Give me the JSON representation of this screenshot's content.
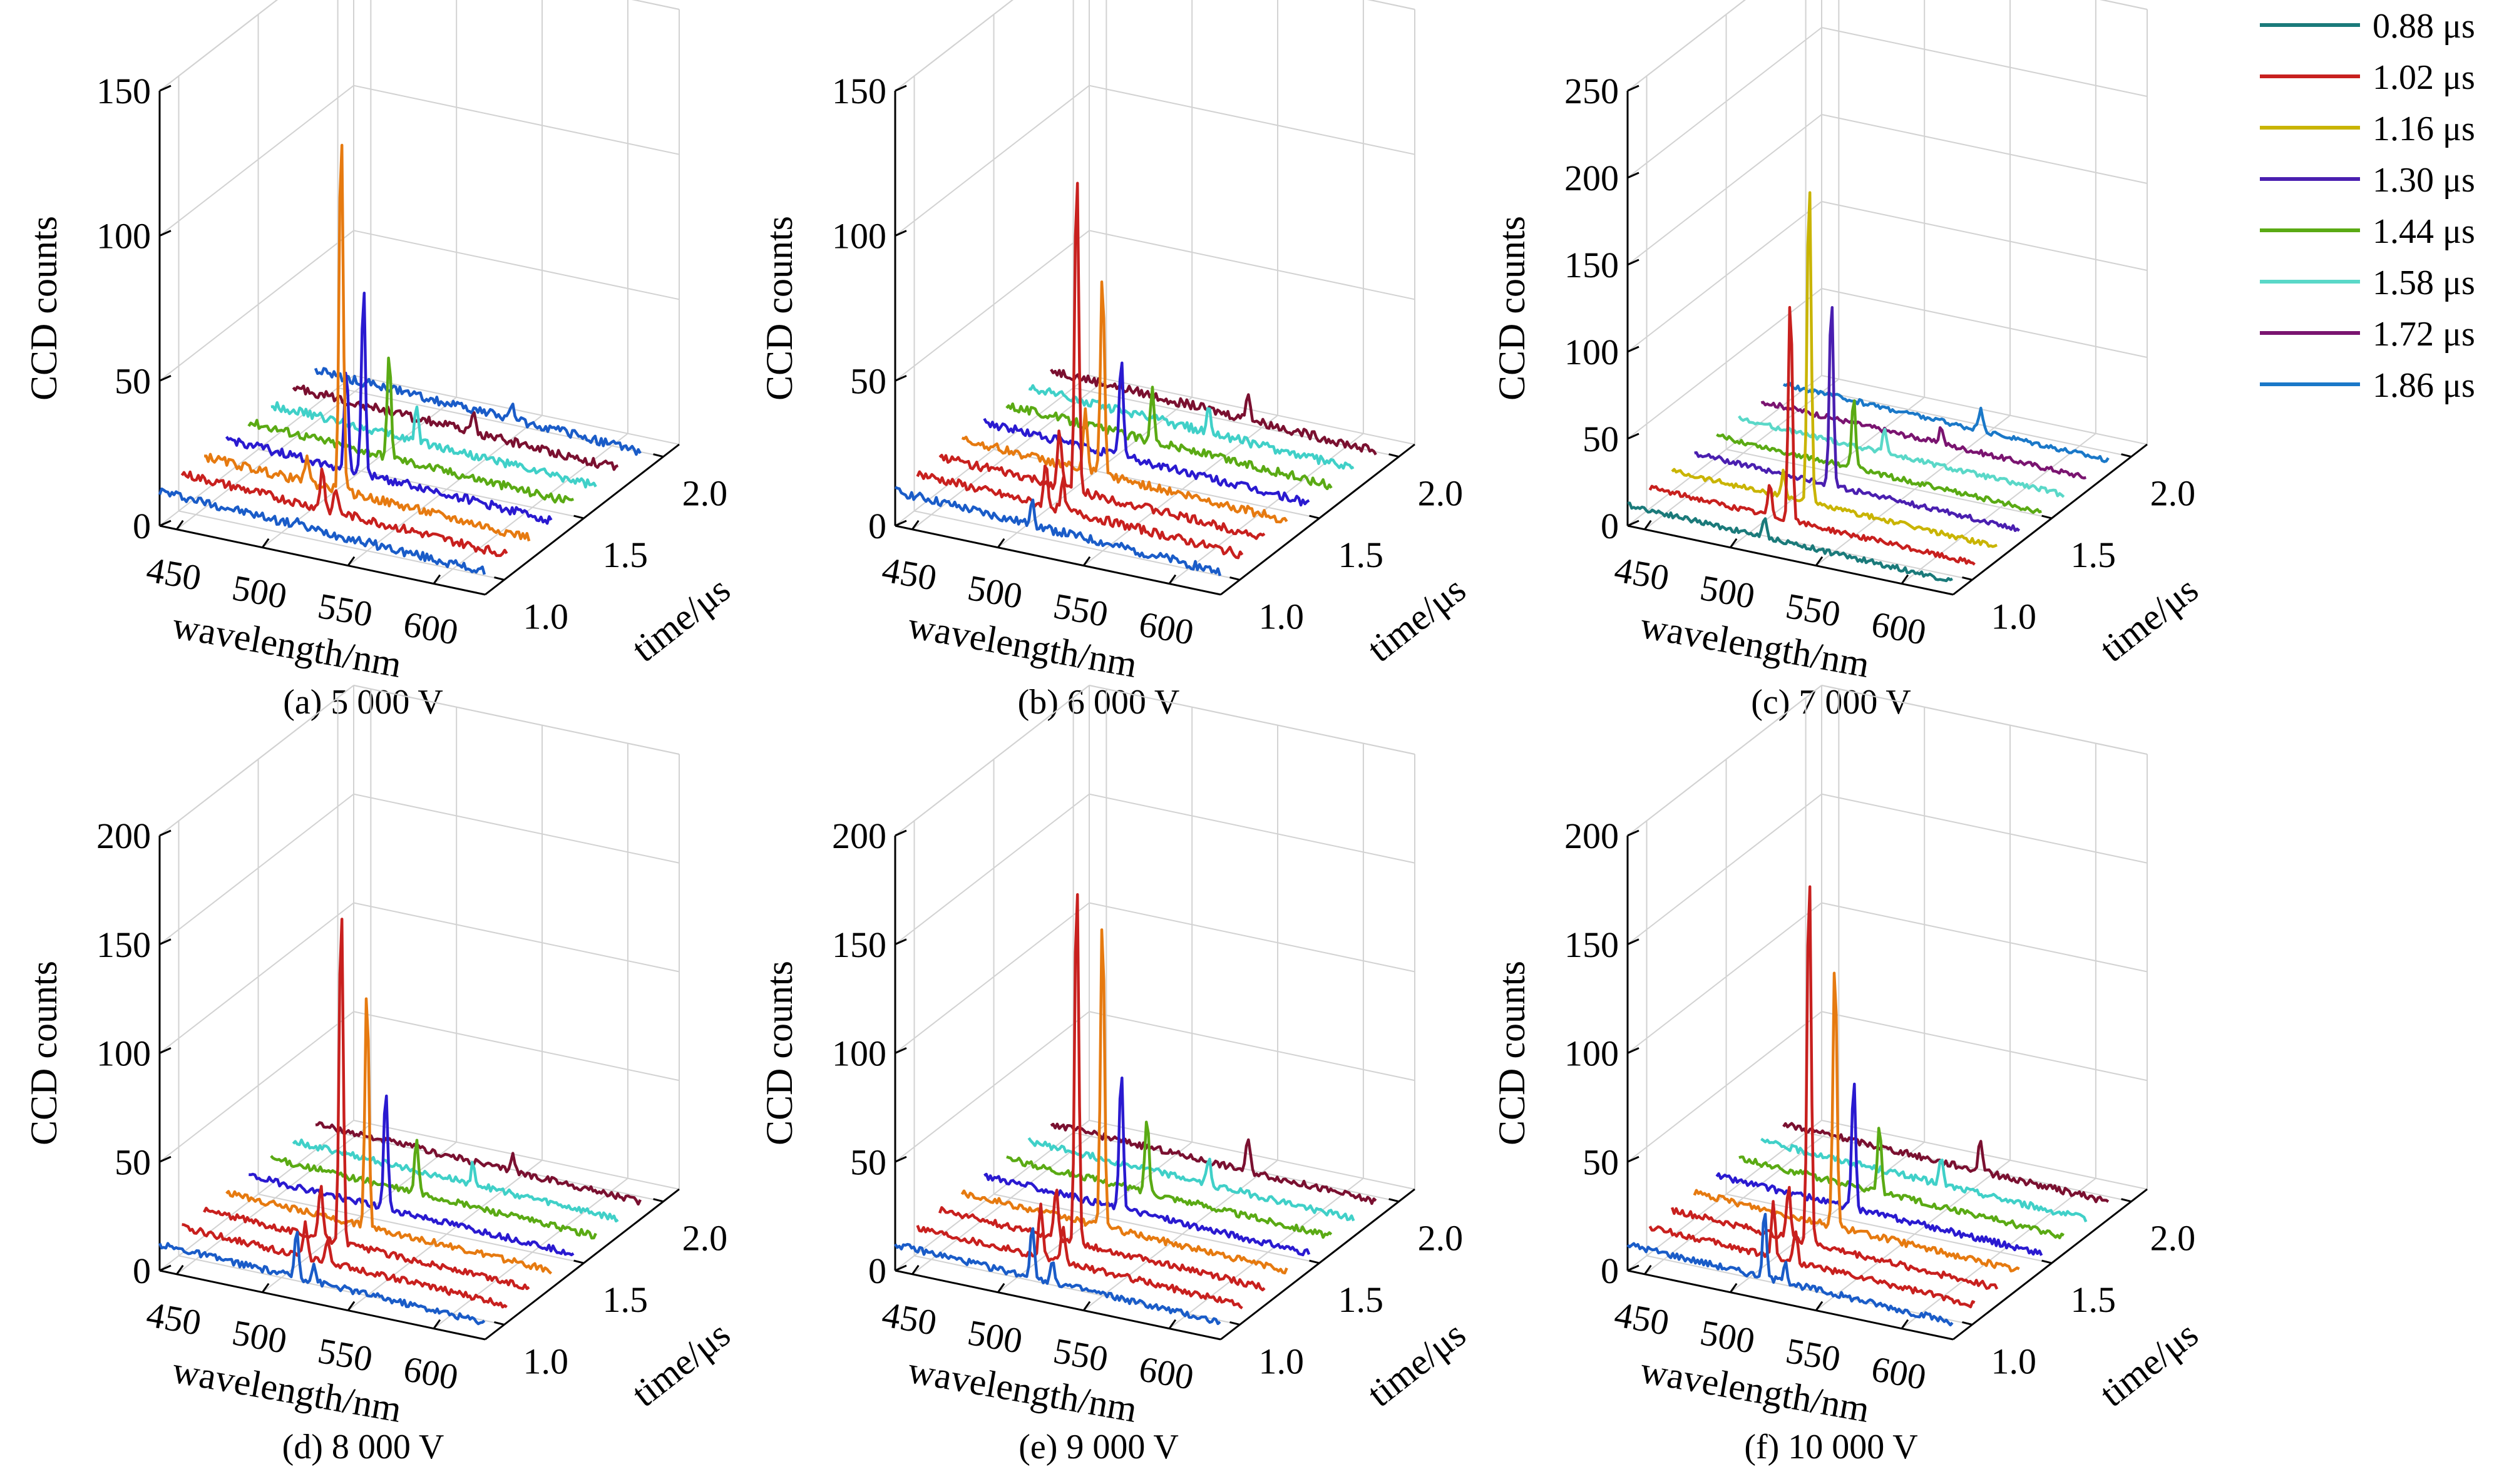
{
  "legend": {
    "entries": [
      {
        "label": "0.88 μs",
        "color": "#1a7a7a"
      },
      {
        "label": "1.02 μs",
        "color": "#c8201e"
      },
      {
        "label": "1.16 μs",
        "color": "#c9b400"
      },
      {
        "label": "1.30 μs",
        "color": "#4a1fb0"
      },
      {
        "label": "1.44 μs",
        "color": "#5aaa14"
      },
      {
        "label": "1.58 μs",
        "color": "#5ad8c8"
      },
      {
        "label": "1.72 μs",
        "color": "#7a1470"
      },
      {
        "label": "1.86 μs",
        "color": "#1a78c8"
      }
    ]
  },
  "chart_data": [
    {
      "type": "line",
      "panel": "a",
      "caption": "(a) 5 000 V",
      "xlabel": "wavelength/nm",
      "ylabel": "time/μs",
      "zlabel": "CCD counts",
      "x_ticks": [
        "450",
        "500",
        "550",
        "600"
      ],
      "y_ticks": [
        "1.0",
        "1.5",
        "2.0"
      ],
      "z_ticks": [
        "0",
        "50",
        "100",
        "150"
      ],
      "xlim": [
        440,
        630
      ],
      "ylim": [
        0.88,
        2.1
      ],
      "zlim": [
        0,
        150
      ],
      "trace_colors": [
        "#1a5cc8",
        "#c8201e",
        "#e67a10",
        "#2a1ad0",
        "#5aaa14",
        "#40d0c8",
        "#7a1030",
        "#1a5cc8"
      ],
      "series": [
        {
          "time": 0.88,
          "peaks": [
            [
              520,
              2
            ]
          ],
          "baseline": 12
        },
        {
          "time": 1.02,
          "peaks": [
            [
              522,
              15
            ],
            [
              530,
              8
            ]
          ],
          "baseline": 12
        },
        {
          "time": 1.16,
          "peaks": [
            [
              520,
              128
            ],
            [
              500,
              10
            ]
          ],
          "baseline": 12
        },
        {
          "time": 1.3,
          "peaks": [
            [
              520,
              65
            ],
            [
              510,
              35
            ]
          ],
          "baseline": 12
        },
        {
          "time": 1.44,
          "peaks": [
            [
              522,
              35
            ]
          ],
          "baseline": 12
        },
        {
          "time": 1.58,
          "peaks": [
            [
              525,
              12
            ]
          ],
          "baseline": 12
        },
        {
          "time": 1.72,
          "peaks": [
            [
              545,
              8
            ]
          ],
          "baseline": 12
        },
        {
          "time": 1.86,
          "peaks": [
            [
              555,
              6
            ]
          ],
          "baseline": 12
        }
      ]
    },
    {
      "type": "line",
      "panel": "b",
      "caption": "(b) 6 000 V",
      "xlabel": "wavelength/nm",
      "ylabel": "time/μs",
      "zlabel": "CCD counts",
      "x_ticks": [
        "450",
        "500",
        "550",
        "600"
      ],
      "y_ticks": [
        "1.0",
        "1.5",
        "2.0"
      ],
      "z_ticks": [
        "0",
        "50",
        "100",
        "150"
      ],
      "xlim": [
        440,
        630
      ],
      "ylim": [
        0.88,
        2.1
      ],
      "zlim": [
        0,
        150
      ],
      "trace_colors": [
        "#1a5cc8",
        "#c8201e",
        "#c8201e",
        "#e67a10",
        "#2a1ad0",
        "#5aaa14",
        "#40d0c8",
        "#7a1030"
      ],
      "series": [
        {
          "time": 0.88,
          "peaks": [
            [
              520,
              10
            ]
          ],
          "baseline": 12
        },
        {
          "time": 1.02,
          "peaks": [
            [
              515,
              15
            ],
            [
              525,
              10
            ]
          ],
          "baseline": 12
        },
        {
          "time": 1.16,
          "peaks": [
            [
              520,
              112
            ],
            [
              510,
              20
            ]
          ],
          "baseline": 12
        },
        {
          "time": 1.3,
          "peaks": [
            [
              522,
              70
            ],
            [
              512,
              20
            ]
          ],
          "baseline": 12
        },
        {
          "time": 1.44,
          "peaks": [
            [
              520,
              35
            ]
          ],
          "baseline": 12
        },
        {
          "time": 1.58,
          "peaks": [
            [
              525,
              18
            ]
          ],
          "baseline": 12
        },
        {
          "time": 1.72,
          "peaks": [
            [
              545,
              10
            ]
          ],
          "baseline": 12
        },
        {
          "time": 1.86,
          "peaks": [
            [
              555,
              10
            ]
          ],
          "baseline": 12
        }
      ]
    },
    {
      "type": "line",
      "panel": "c",
      "caption": "(c) 7 000 V",
      "xlabel": "wavelength/nm",
      "ylabel": "time/μs",
      "zlabel": "CCD counts",
      "x_ticks": [
        "450",
        "500",
        "550",
        "600"
      ],
      "y_ticks": [
        "1.0",
        "1.5",
        "2.0"
      ],
      "z_ticks": [
        "0",
        "50",
        "100",
        "150",
        "200",
        "250"
      ],
      "xlim": [
        440,
        630
      ],
      "ylim": [
        0.88,
        2.1
      ],
      "zlim": [
        0,
        250
      ],
      "trace_colors": [
        "#1a7a7a",
        "#c8201e",
        "#c9b400",
        "#4a1fb0",
        "#5aaa14",
        "#5ad8c8",
        "#7a1470",
        "#1a78c8"
      ],
      "series": [
        {
          "time": 0.88,
          "peaks": [
            [
              520,
              10
            ]
          ],
          "baseline": 12
        },
        {
          "time": 1.02,
          "peaks": [
            [
              522,
              130
            ],
            [
              510,
              18
            ]
          ],
          "baseline": 12
        },
        {
          "time": 1.16,
          "peaks": [
            [
              520,
              190
            ],
            [
              505,
              15
            ]
          ],
          "baseline": 12
        },
        {
          "time": 1.3,
          "peaks": [
            [
              520,
              110
            ]
          ],
          "baseline": 12
        },
        {
          "time": 1.44,
          "peaks": [
            [
              520,
              40
            ]
          ],
          "baseline": 12
        },
        {
          "time": 1.58,
          "peaks": [
            [
              525,
              15
            ]
          ],
          "baseline": 12
        },
        {
          "time": 1.72,
          "peaks": [
            [
              545,
              10
            ]
          ],
          "baseline": 12
        },
        {
          "time": 1.86,
          "peaks": [
            [
              555,
              12
            ]
          ],
          "baseline": 12
        }
      ]
    },
    {
      "type": "line",
      "panel": "d",
      "caption": "(d) 8 000 V",
      "xlabel": "wavelength/nm",
      "ylabel": "time/μs",
      "zlabel": "CCD counts",
      "x_ticks": [
        "450",
        "500",
        "550",
        "600"
      ],
      "y_ticks": [
        "1.0",
        "1.5",
        "2.0"
      ],
      "z_ticks": [
        "0",
        "50",
        "100",
        "150",
        "200"
      ],
      "xlim": [
        440,
        630
      ],
      "ylim": [
        0.88,
        2.1
      ],
      "zlim": [
        0,
        200
      ],
      "trace_colors": [
        "#1a5cc8",
        "#c8201e",
        "#c8201e",
        "#e67a10",
        "#2a1ad0",
        "#5aaa14",
        "#40d0c8",
        "#7a1030"
      ],
      "series": [
        {
          "time": 0.88,
          "peaks": [
            [
              520,
              22
            ],
            [
              530,
              8
            ]
          ],
          "baseline": 12
        },
        {
          "time": 1.02,
          "peaks": [
            [
              512,
              15
            ],
            [
              525,
              10
            ]
          ],
          "baseline": 12
        },
        {
          "time": 1.16,
          "peaks": [
            [
              520,
              160
            ],
            [
              508,
              25
            ]
          ],
          "baseline": 12
        },
        {
          "time": 1.3,
          "peaks": [
            [
              522,
              110
            ]
          ],
          "baseline": 12
        },
        {
          "time": 1.44,
          "peaks": [
            [
              520,
              55
            ]
          ],
          "baseline": 12
        },
        {
          "time": 1.58,
          "peaks": [
            [
              525,
              25
            ]
          ],
          "baseline": 12
        },
        {
          "time": 1.72,
          "peaks": [
            [
              545,
              10
            ]
          ],
          "baseline": 12
        },
        {
          "time": 1.86,
          "peaks": [
            [
              555,
              8
            ]
          ],
          "baseline": 12
        }
      ]
    },
    {
      "type": "line",
      "panel": "e",
      "caption": "(e) 9 000 V",
      "xlabel": "wavelength/nm",
      "ylabel": "time/μs",
      "zlabel": "CCD counts",
      "x_ticks": [
        "450",
        "500",
        "550",
        "600"
      ],
      "y_ticks": [
        "1.0",
        "1.5",
        "2.0"
      ],
      "z_ticks": [
        "0",
        "50",
        "100",
        "150",
        "200"
      ],
      "xlim": [
        440,
        630
      ],
      "ylim": [
        0.88,
        2.1
      ],
      "zlim": [
        0,
        200
      ],
      "trace_colors": [
        "#1a5cc8",
        "#c8201e",
        "#c8201e",
        "#e67a10",
        "#2a1ad0",
        "#5aaa14",
        "#40d0c8",
        "#7a1030"
      ],
      "series": [
        {
          "time": 0.88,
          "peaks": [
            [
              520,
              25
            ],
            [
              532,
              10
            ]
          ],
          "baseline": 12
        },
        {
          "time": 1.02,
          "peaks": [
            [
              512,
              25
            ],
            [
              525,
              15
            ]
          ],
          "baseline": 12
        },
        {
          "time": 1.16,
          "peaks": [
            [
              520,
              170
            ],
            [
              508,
              25
            ]
          ],
          "baseline": 12
        },
        {
          "time": 1.3,
          "peaks": [
            [
              522,
              145
            ]
          ],
          "baseline": 12
        },
        {
          "time": 1.44,
          "peaks": [
            [
              520,
              65
            ]
          ],
          "baseline": 12
        },
        {
          "time": 1.58,
          "peaks": [
            [
              522,
              35
            ]
          ],
          "baseline": 12
        },
        {
          "time": 1.72,
          "peaks": [
            [
              545,
              12
            ]
          ],
          "baseline": 12
        },
        {
          "time": 1.86,
          "peaks": [
            [
              555,
              15
            ]
          ],
          "baseline": 12
        }
      ]
    },
    {
      "type": "line",
      "panel": "f",
      "caption": "(f) 10 000 V",
      "xlabel": "wavelength/nm",
      "ylabel": "time/μs",
      "zlabel": "CCD counts",
      "x_ticks": [
        "450",
        "500",
        "550",
        "600"
      ],
      "y_ticks": [
        "1.0",
        "1.5",
        "2.0"
      ],
      "z_ticks": [
        "0",
        "50",
        "100",
        "150",
        "200"
      ],
      "xlim": [
        440,
        630
      ],
      "ylim": [
        0.88,
        2.1
      ],
      "zlim": [
        0,
        200
      ],
      "trace_colors": [
        "#1a5cc8",
        "#c8201e",
        "#c8201e",
        "#e67a10",
        "#2a1ad0",
        "#5aaa14",
        "#40d0c8",
        "#7a1030"
      ],
      "series": [
        {
          "time": 0.88,
          "peaks": [
            [
              520,
              30
            ],
            [
              532,
              10
            ]
          ],
          "baseline": 12
        },
        {
          "time": 1.02,
          "peaks": [
            [
              512,
              25
            ],
            [
              525,
              15
            ]
          ],
          "baseline": 12
        },
        {
          "time": 1.16,
          "peaks": [
            [
              520,
              175
            ],
            [
              508,
              25
            ]
          ],
          "baseline": 12
        },
        {
          "time": 1.3,
          "peaks": [
            [
              522,
              125
            ]
          ],
          "baseline": 12
        },
        {
          "time": 1.44,
          "peaks": [
            [
              520,
              60
            ]
          ],
          "baseline": 12
        },
        {
          "time": 1.58,
          "peaks": [
            [
              522,
              30
            ]
          ],
          "baseline": 12
        },
        {
          "time": 1.72,
          "peaks": [
            [
              545,
              12
            ]
          ],
          "baseline": 12
        },
        {
          "time": 1.86,
          "peaks": [
            [
              555,
              15
            ]
          ],
          "baseline": 12
        }
      ]
    }
  ]
}
